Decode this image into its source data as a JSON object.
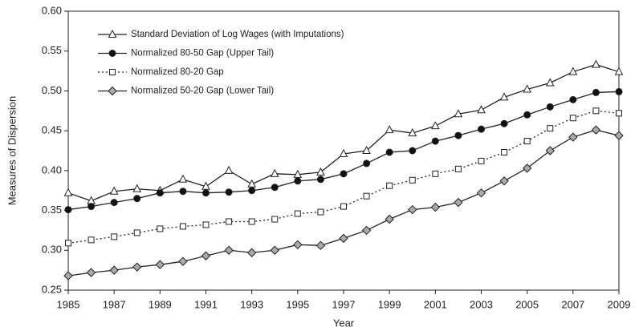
{
  "chart_data": {
    "type": "line",
    "x_label": "Year",
    "y_label": "Measures of Dispersion",
    "x": [
      1985,
      1986,
      1987,
      1988,
      1989,
      1990,
      1991,
      1992,
      1993,
      1994,
      1995,
      1996,
      1997,
      1998,
      1999,
      2000,
      2001,
      2002,
      2003,
      2004,
      2005,
      2006,
      2007,
      2008,
      2009
    ],
    "series": [
      {
        "name": "Standard Deviation of Log Wages (with Imputations)",
        "color": "#222222",
        "marker": "triangle",
        "marker_fill": "#ffffff",
        "dash": false,
        "values": [
          0.372,
          0.362,
          0.374,
          0.377,
          0.375,
          0.389,
          0.38,
          0.4,
          0.383,
          0.396,
          0.395,
          0.398,
          0.421,
          0.425,
          0.451,
          0.447,
          0.456,
          0.471,
          0.476,
          0.492,
          0.502,
          0.51,
          0.524,
          0.533,
          0.524
        ]
      },
      {
        "name": "Normalized 80-50 Gap (Upper Tail)",
        "color": "#222222",
        "marker": "circle",
        "marker_fill": "#111111",
        "dash": false,
        "values": [
          0.351,
          0.355,
          0.36,
          0.365,
          0.372,
          0.374,
          0.372,
          0.373,
          0.375,
          0.379,
          0.387,
          0.389,
          0.396,
          0.409,
          0.423,
          0.425,
          0.437,
          0.444,
          0.452,
          0.459,
          0.47,
          0.48,
          0.489,
          0.498,
          0.499
        ]
      },
      {
        "name": "Normalized 80-20 Gap",
        "color": "#222222",
        "marker": "square",
        "marker_fill": "#ffffff",
        "dash": true,
        "values": [
          0.309,
          0.313,
          0.317,
          0.322,
          0.327,
          0.33,
          0.332,
          0.336,
          0.336,
          0.339,
          0.346,
          0.348,
          0.355,
          0.368,
          0.381,
          0.388,
          0.396,
          0.402,
          0.412,
          0.423,
          0.437,
          0.453,
          0.466,
          0.475,
          0.472
        ]
      },
      {
        "name": "Normalized 50-20 Gap (Lower Tail)",
        "color": "#222222",
        "marker": "diamond",
        "marker_fill": "#aaaaaa",
        "dash": false,
        "values": [
          0.268,
          0.272,
          0.275,
          0.279,
          0.282,
          0.286,
          0.293,
          0.3,
          0.297,
          0.3,
          0.307,
          0.306,
          0.315,
          0.325,
          0.339,
          0.351,
          0.354,
          0.36,
          0.372,
          0.387,
          0.403,
          0.425,
          0.442,
          0.451,
          0.444
        ]
      }
    ],
    "xlim": [
      1985,
      2009
    ],
    "xticks": [
      1985,
      1987,
      1989,
      1991,
      1993,
      1995,
      1997,
      1999,
      2001,
      2003,
      2005,
      2007,
      2009
    ],
    "ylim": [
      0.25,
      0.6
    ],
    "yticks": [
      0.25,
      {
        "value": 0.3,
        "label": "0.30"
      },
      0.35,
      {
        "value": 0.4,
        "label": "0.40"
      },
      0.45,
      {
        "value": 0.5,
        "label": "0.50"
      },
      0.55,
      {
        "value": 0.6,
        "label": "0.60"
      }
    ],
    "legend": "upper left",
    "grid": false
  }
}
